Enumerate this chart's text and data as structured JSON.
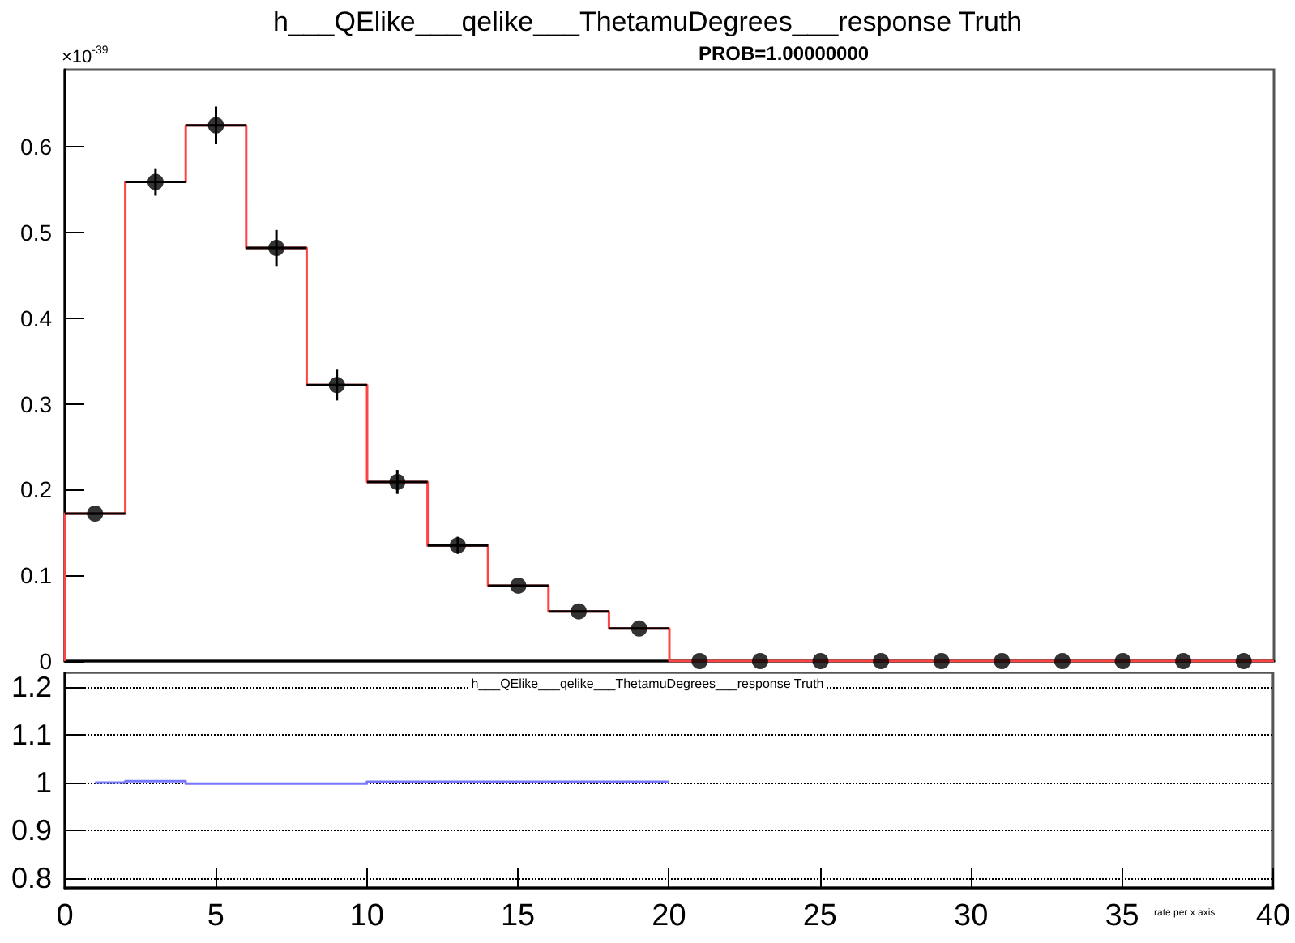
{
  "chart_data": [
    {
      "type": "histogram",
      "title": "h___QElike___qelike___ThetamuDegrees___response Truth",
      "subtitle": "PROB=1.00000000",
      "annotations": [
        "×10$^{-39}$"
      ],
      "bins": [
        0,
        2,
        4,
        6,
        8,
        10,
        12,
        14,
        16,
        18,
        20,
        22,
        24,
        26,
        28,
        30,
        32,
        34,
        36,
        38,
        40
      ],
      "series": [
        {
          "color": "#ff4444",
          "values": [
            0.172,
            0.559,
            0.625,
            0.482,
            0.322,
            0.209,
            0.135,
            0.088,
            0.058,
            0.038,
            0,
            0,
            0,
            0,
            0,
            0,
            0,
            0,
            0,
            0
          ]
        },
        {
          "type": "scatter",
          "color": "#000000",
          "x": [
            1,
            3,
            5,
            7,
            9,
            11,
            13,
            15,
            17,
            19,
            21,
            23,
            25,
            27,
            29,
            31,
            33,
            35,
            37,
            39
          ],
          "values": [
            0.172,
            0.559,
            0.625,
            0.482,
            0.322,
            0.209,
            0.135,
            0.088,
            0.058,
            0.038,
            0,
            0,
            0,
            0,
            0,
            0,
            0,
            0,
            0,
            0
          ],
          "errors": [
            null,
            0.016,
            0.022,
            0.021,
            0.018,
            0.014,
            0.01,
            null,
            null,
            null,
            null,
            null,
            null,
            null,
            null,
            null,
            null,
            null,
            null,
            null
          ],
          "xerrors": [
            1,
            1,
            1,
            1,
            1,
            1,
            1,
            1,
            1,
            1,
            null,
            null,
            null,
            null,
            null,
            null,
            null,
            null,
            null,
            null
          ]
        }
      ],
      "xlim": [
        0,
        40
      ],
      "ylim": [
        0,
        0.69
      ],
      "yticks": [
        0,
        0.1,
        0.2,
        0.3,
        0.4,
        0.5,
        0.6
      ],
      "tick_labels": "y",
      "marker": "circle"
    },
    {
      "type": "step",
      "title": "h___QElike___qelike___ThetamuDegrees___response Truth",
      "annotations": [
        "rate per x axis"
      ],
      "x": [
        1,
        2,
        4,
        6,
        8,
        10,
        12,
        14,
        16,
        18,
        20
      ],
      "series": [
        {
          "color": "#7777ff",
          "values": [
            1,
            1.003,
            0.998,
            0.998,
            0.998,
            1.002,
            1.002,
            1.002,
            1.002,
            1.002,
            1.002
          ]
        }
      ],
      "xlim": [
        0,
        40
      ],
      "xticks": [
        0,
        5,
        10,
        15,
        20,
        25,
        30,
        35,
        40
      ],
      "ylim": [
        0.78,
        1.23
      ],
      "yticks": [
        0.8,
        0.9,
        1,
        1.1,
        1.2
      ],
      "grid": "y",
      "line_style": "solid"
    }
  ]
}
